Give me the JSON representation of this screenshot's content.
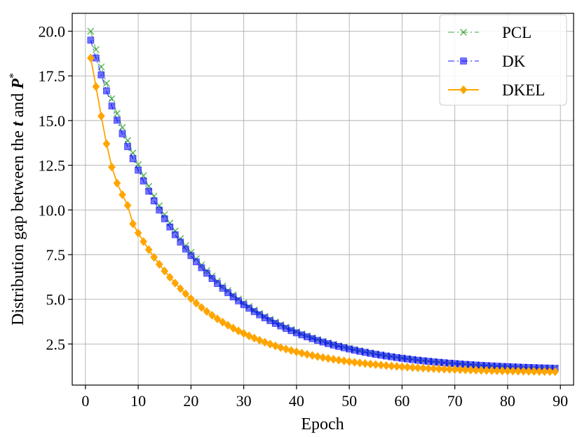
{
  "chart_data": {
    "type": "line",
    "title": "",
    "xlabel": "Epoch",
    "ylabel": {
      "prefix": "Distribution gap between the ",
      "var_t": "t",
      "middle": " and ",
      "var_p": "P",
      "superscript": "*"
    },
    "xlim": [
      -2.5,
      92.5
    ],
    "ylim": [
      0.2,
      21.0
    ],
    "xticks": [
      0,
      10,
      20,
      30,
      40,
      50,
      60,
      70,
      80,
      90
    ],
    "xtick_labels": [
      "0",
      "10",
      "20",
      "30",
      "40",
      "50",
      "60",
      "70",
      "80",
      "90"
    ],
    "yticks": [
      2.5,
      5.0,
      7.5,
      10.0,
      12.5,
      15.0,
      17.5,
      20.0
    ],
    "ytick_labels": [
      "2.5",
      "5.0",
      "7.5",
      "10.0",
      "12.5",
      "15.0",
      "17.5",
      "20.0"
    ],
    "grid": true,
    "legend_position": "top-right",
    "x_range": {
      "start": 1,
      "end": 89,
      "step": 1
    },
    "series": [
      {
        "name": "PCL",
        "color": "#2ca02c",
        "line_style": "dash-dot",
        "marker": "x",
        "model": {
          "kind": "exp",
          "floor": 1.0,
          "start_value": 20.0,
          "rate": 0.0555
        }
      },
      {
        "name": "DK",
        "color": "#0000ff",
        "line_style": "dash-dot",
        "marker": "square",
        "model": {
          "kind": "exp",
          "floor": 1.0,
          "start_value": 19.5,
          "rate": 0.0555
        }
      },
      {
        "name": "DKEL",
        "color": "#ffa500",
        "line_style": "solid",
        "marker": "diamond",
        "head_values": [
          18.5,
          16.9,
          15.25,
          13.7,
          12.4,
          11.5,
          10.85,
          10.25
        ],
        "model": {
          "kind": "exp",
          "floor": 0.9,
          "start_value": 9.77,
          "rate": 0.0636
        }
      }
    ]
  }
}
